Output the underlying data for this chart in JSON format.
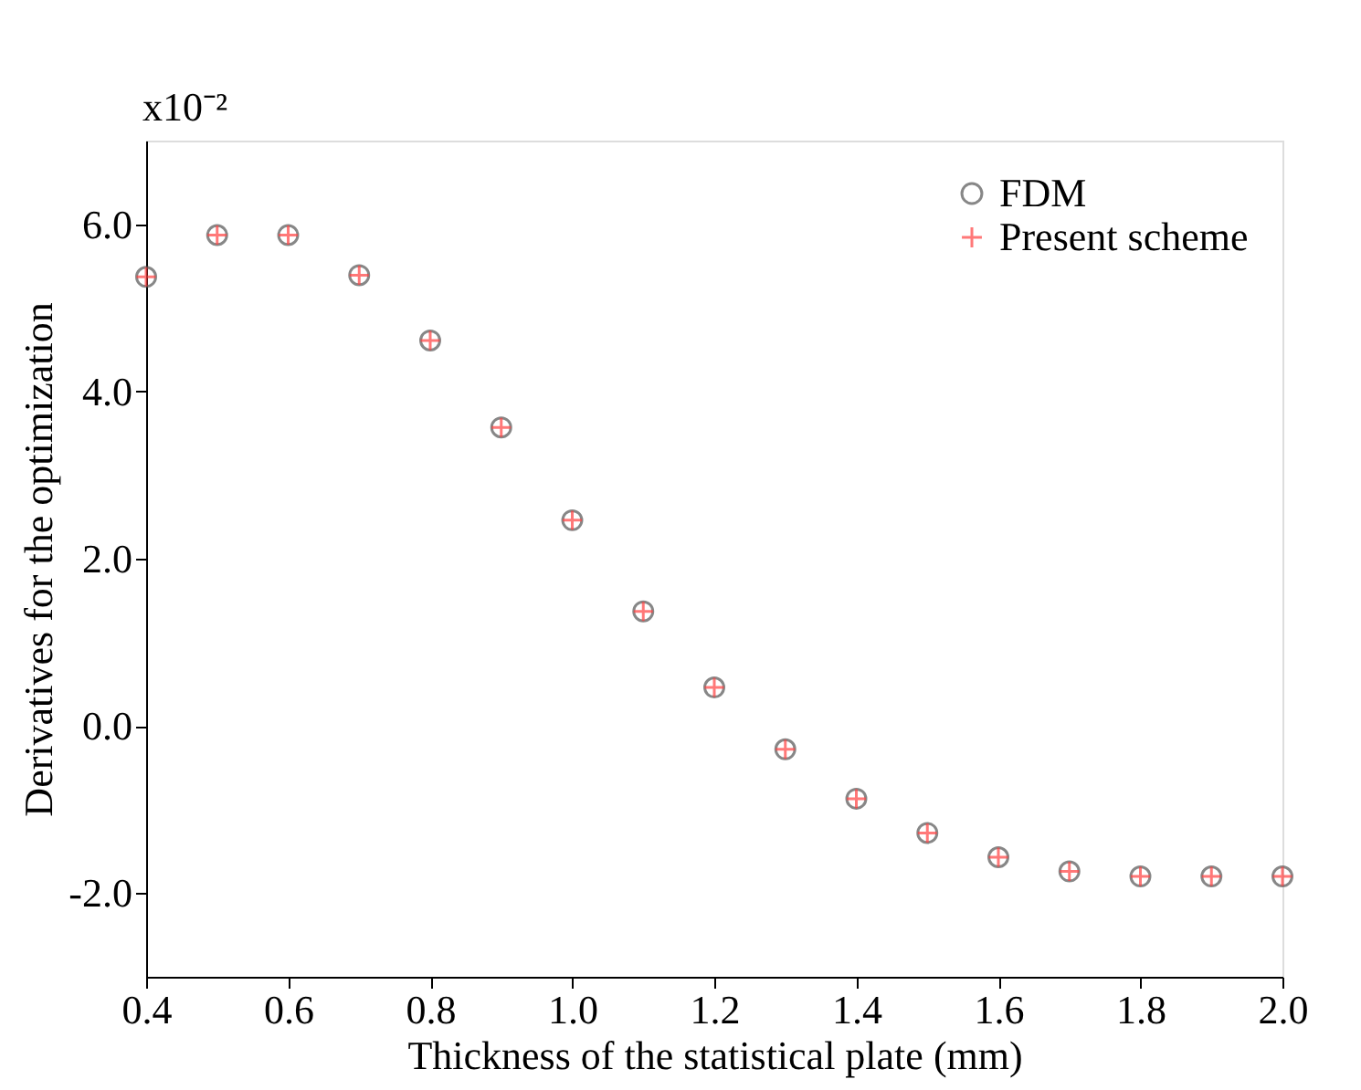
{
  "chart_data": {
    "type": "scatter",
    "xlabel": "Thickness of the statistical plate (mm)",
    "ylabel": "Derivatives for the optimization",
    "annotations": [
      "x10⁻²"
    ],
    "x": [
      0.4,
      0.5,
      0.6,
      0.7,
      0.8,
      0.9,
      1.0,
      1.1,
      1.2,
      1.3,
      1.4,
      1.5,
      1.6,
      1.7,
      1.8,
      1.9,
      2.0
    ],
    "series": [
      {
        "name": "FDM",
        "color": "#555555",
        "marker": "circle",
        "values": [
          5.37,
          5.87,
          5.87,
          5.39,
          4.61,
          3.57,
          2.46,
          1.37,
          0.46,
          -0.28,
          -0.87,
          -1.28,
          -1.57,
          -1.74,
          -1.8,
          -1.8,
          -1.8
        ]
      },
      {
        "name": "Present scheme",
        "color": "#ff4040",
        "marker": "cross",
        "values": [
          5.37,
          5.87,
          5.87,
          5.39,
          4.61,
          3.57,
          2.46,
          1.37,
          0.46,
          -0.28,
          -0.87,
          -1.28,
          -1.57,
          -1.74,
          -1.8,
          -1.8,
          -1.8
        ]
      }
    ],
    "xlim": [
      0.4,
      2.0
    ],
    "ylim": [
      -3,
      7
    ],
    "xticks": [
      0.4,
      0.6,
      0.8,
      {
        "value": 1.0,
        "label": "1.0"
      },
      1.2,
      1.4,
      1.6,
      1.8,
      {
        "value": 2.0,
        "label": "2.0"
      }
    ],
    "yticks": [
      {
        "value": -2,
        "label": "-2.0"
      },
      {
        "value": 0,
        "label": "0.0"
      },
      {
        "value": 2,
        "label": "2.0"
      },
      {
        "value": 4,
        "label": "4.0"
      },
      {
        "value": 6,
        "label": "6.0"
      }
    ],
    "grid": false,
    "legend": "top right"
  }
}
